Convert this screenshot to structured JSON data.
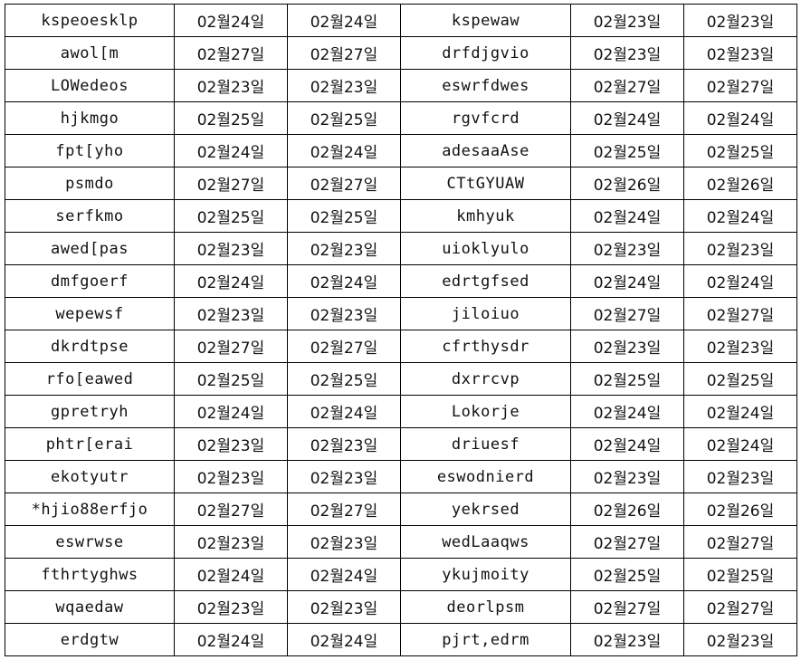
{
  "rows": [
    [
      "kspeoesklp",
      "02월24일",
      "02월24일",
      "kspewaw",
      "02월23일",
      "02월23일"
    ],
    [
      "awol[m",
      "02월27일",
      "02월27일",
      "drfdjgvio",
      "02월23일",
      "02월23일"
    ],
    [
      "LOWedeos",
      "02월23일",
      "02월23일",
      "eswrfdwes",
      "02월27일",
      "02월27일"
    ],
    [
      "hjkmgo",
      "02월25일",
      "02월25일",
      "rgvfcrd",
      "02월24일",
      "02월24일"
    ],
    [
      "fpt[yho",
      "02월24일",
      "02월24일",
      "adesaaAse",
      "02월25일",
      "02월25일"
    ],
    [
      "psmdo",
      "02월27일",
      "02월27일",
      "CTtGYUAW",
      "02월26일",
      "02월26일"
    ],
    [
      "serfkmo",
      "02월25일",
      "02월25일",
      "kmhyuk",
      "02월24일",
      "02월24일"
    ],
    [
      "awed[pas",
      "02월23일",
      "02월23일",
      "uioklyulo",
      "02월23일",
      "02월23일"
    ],
    [
      "dmfgoerf",
      "02월24일",
      "02월24일",
      "edrtgfsed",
      "02월24일",
      "02월24일"
    ],
    [
      "wepewsf",
      "02월23일",
      "02월23일",
      "jiloiuo",
      "02월27일",
      "02월27일"
    ],
    [
      "dkrdtpse",
      "02월27일",
      "02월27일",
      "cfrthysdr",
      "02월23일",
      "02월23일"
    ],
    [
      "rfo[eawed",
      "02월25일",
      "02월25일",
      "dxrrcvp",
      "02월25일",
      "02월25일"
    ],
    [
      "gpretryh",
      "02월24일",
      "02월24일",
      "Lokorje",
      "02월24일",
      "02월24일"
    ],
    [
      "phtr[erai",
      "02월23일",
      "02월23일",
      "driuesf",
      "02월24일",
      "02월24일"
    ],
    [
      "ekotyutr",
      "02월23일",
      "02월23일",
      "eswodnierd",
      "02월23일",
      "02월23일"
    ],
    [
      "*hjio88erfjo",
      "02월27일",
      "02월27일",
      "yekrsed",
      "02월26일",
      "02월26일"
    ],
    [
      "eswrwse",
      "02월23일",
      "02월23일",
      "wedLaaqws",
      "02월27일",
      "02월27일"
    ],
    [
      "fthrtyghws",
      "02월24일",
      "02월24일",
      "ykujmoity",
      "02월25일",
      "02월25일"
    ],
    [
      "wqaedaw",
      "02월23일",
      "02월23일",
      "deorlpsm",
      "02월27일",
      "02월27일"
    ],
    [
      "erdgtw",
      "02월24일",
      "02월24일",
      "pjrt,edrm",
      "02월23일",
      "02월23일"
    ]
  ]
}
